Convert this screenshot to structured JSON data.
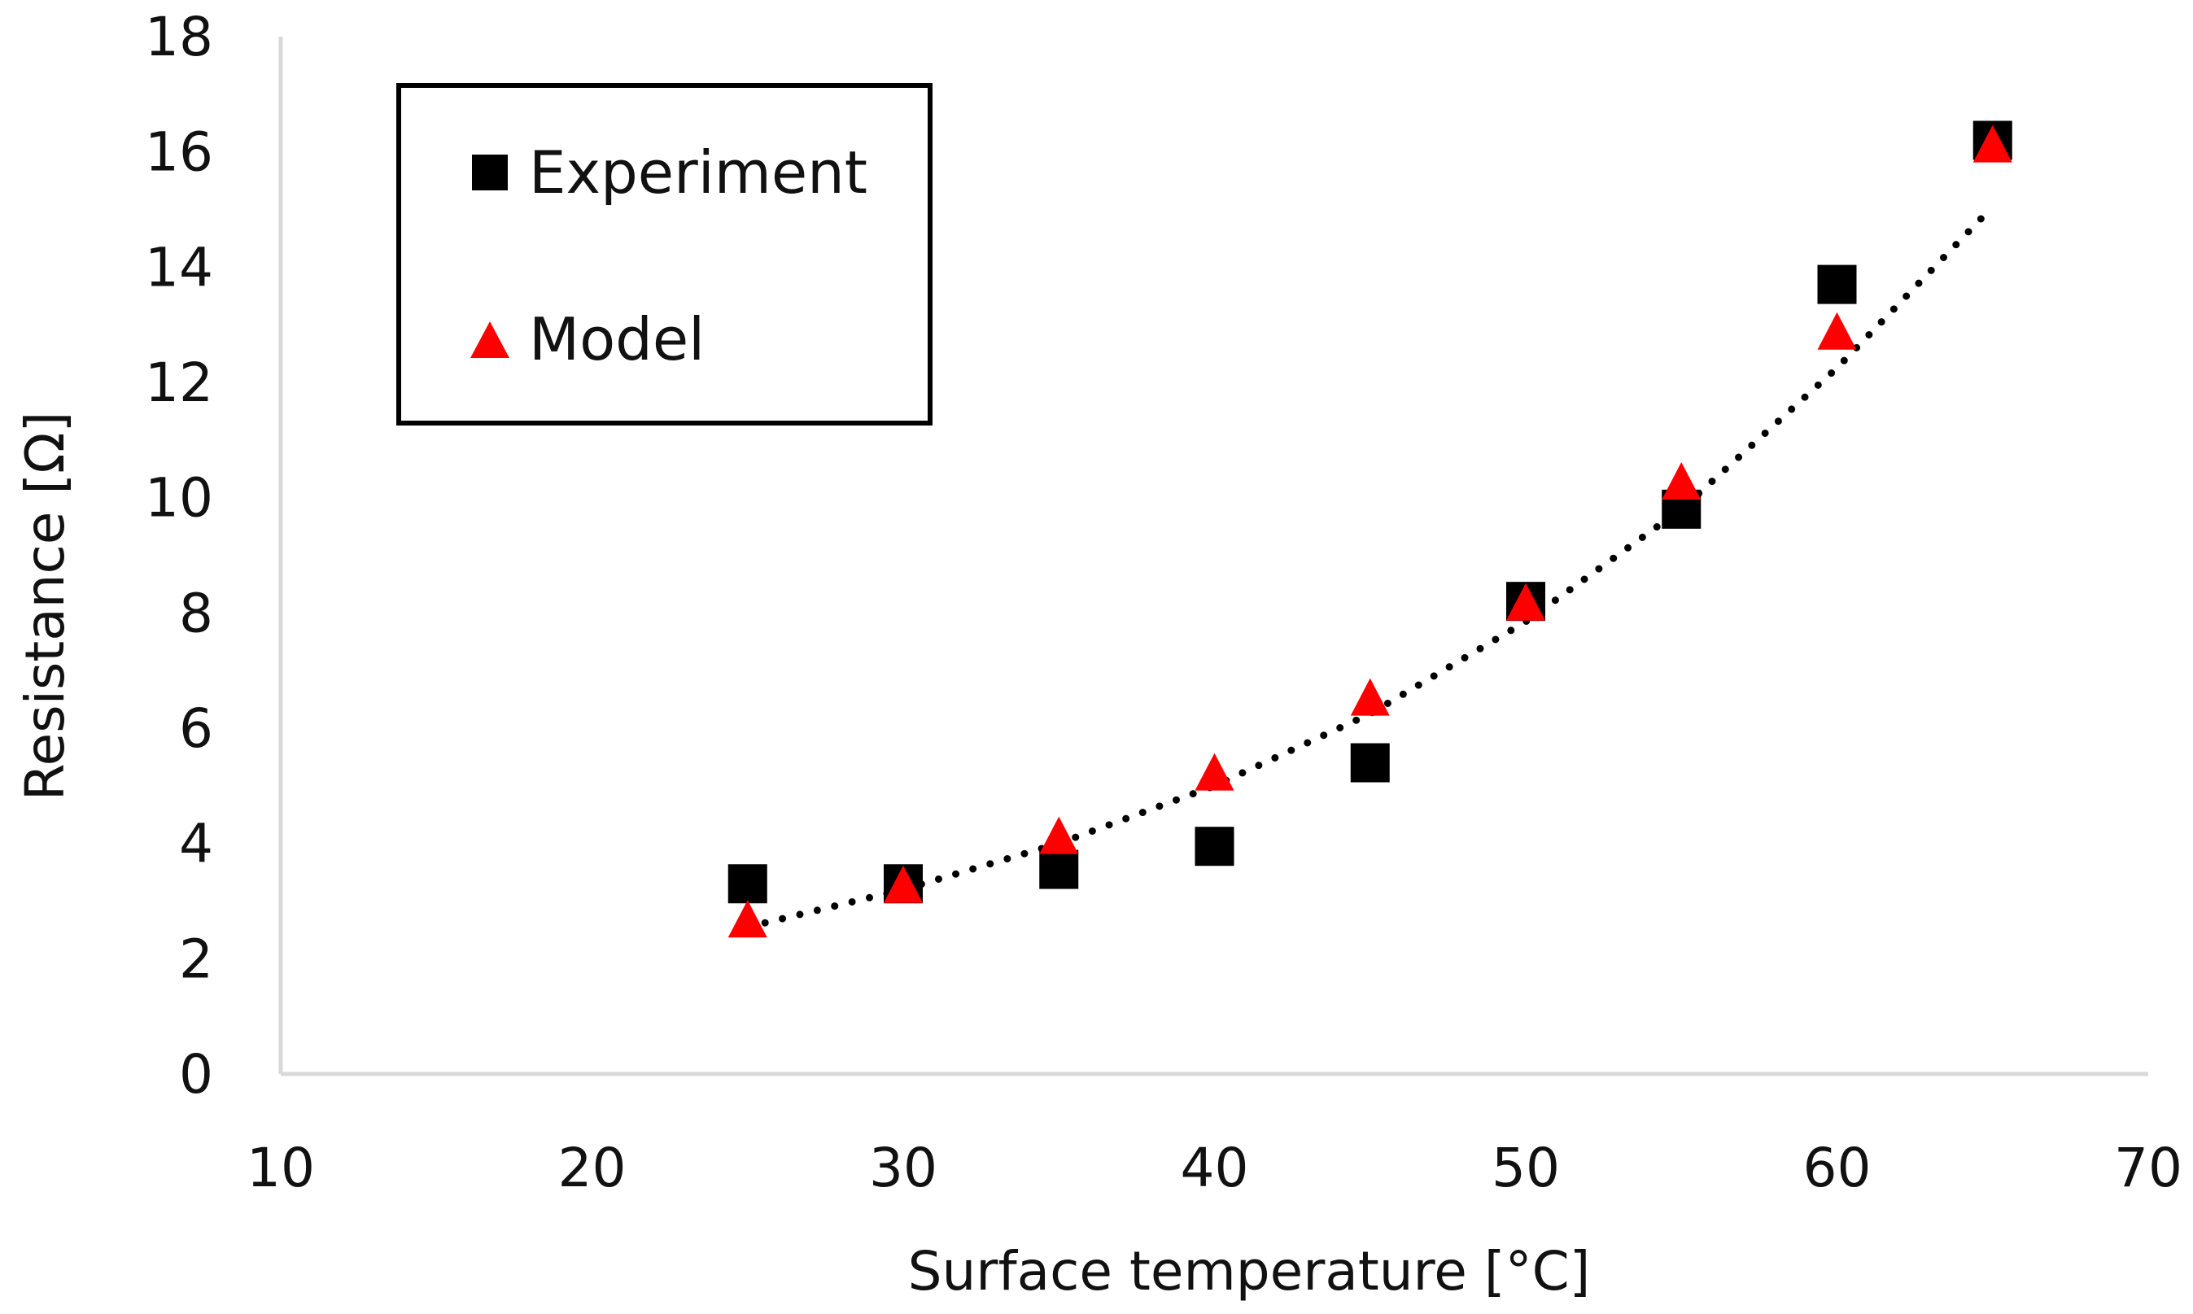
{
  "chart_data": {
    "type": "scatter",
    "title": "",
    "xlabel": "Surface temperature [°C]",
    "ylabel": "Resistance [Ω]",
    "xlim": [
      10,
      70
    ],
    "ylim": [
      0,
      18
    ],
    "x_ticks": [
      10,
      20,
      30,
      40,
      50,
      60,
      70
    ],
    "y_ticks": [
      0,
      2,
      4,
      6,
      8,
      10,
      12,
      14,
      16,
      18
    ],
    "grid": false,
    "legend_position": "top-left",
    "series": [
      {
        "name": "Experiment",
        "marker": "square",
        "color": "#000000",
        "x": [
          25,
          30,
          35,
          40,
          45,
          50,
          55,
          60,
          65
        ],
        "y": [
          3.3,
          3.3,
          3.55,
          3.95,
          5.4,
          8.2,
          9.8,
          13.7,
          16.2
        ]
      },
      {
        "name": "Model",
        "marker": "triangle",
        "color": "#ff0000",
        "x": [
          25,
          30,
          35,
          40,
          45,
          50,
          55,
          60,
          65
        ],
        "y": [
          2.65,
          3.25,
          4.1,
          5.2,
          6.5,
          8.15,
          10.25,
          12.85,
          16.1
        ]
      }
    ],
    "trendline": {
      "style": "dotted",
      "color": "#000000",
      "kind": "exponential",
      "x": [
        25,
        30,
        35,
        40,
        45,
        50,
        55,
        60,
        65
      ],
      "y": [
        2.55,
        3.2,
        4.0,
        5.0,
        6.25,
        7.85,
        9.8,
        12.25,
        15.05
      ]
    }
  }
}
